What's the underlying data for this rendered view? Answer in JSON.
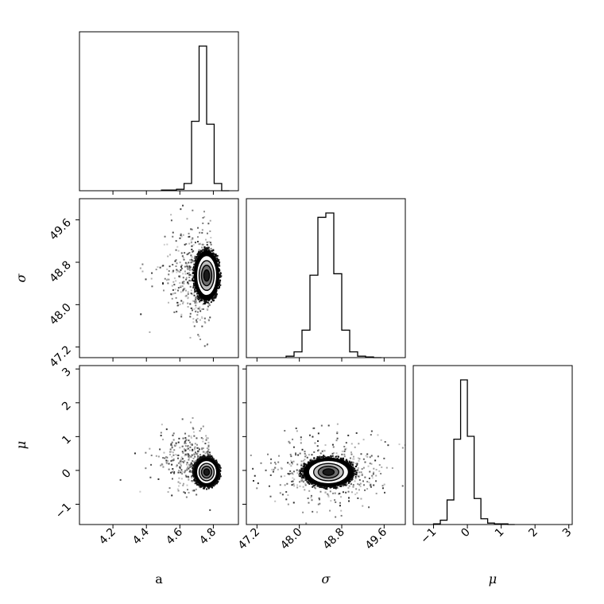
{
  "chart_data": {
    "type": "corner",
    "parameters": [
      {
        "key": "a",
        "label": "a",
        "range": [
          4.0,
          4.95
        ],
        "ticks": [
          {
            "v": 4.2,
            "t": "4.2"
          },
          {
            "v": 4.4,
            "t": "4.4"
          },
          {
            "v": 4.6,
            "t": "4.6"
          },
          {
            "v": 4.8,
            "t": "4.8"
          }
        ]
      },
      {
        "key": "sigma",
        "label": "σ",
        "range": [
          47.0,
          50.0
        ],
        "ticks": [
          {
            "v": 47.2,
            "t": "47.2"
          },
          {
            "v": 48.0,
            "t": "48.0"
          },
          {
            "v": 48.8,
            "t": "48.8"
          },
          {
            "v": 49.6,
            "t": "49.6"
          }
        ]
      },
      {
        "key": "mu",
        "label": "μ",
        "range": [
          -1.6,
          3.1
        ],
        "ticks": [
          {
            "v": -1,
            "t": "−1"
          },
          {
            "v": 0,
            "t": "0"
          },
          {
            "v": 1,
            "t": "1"
          },
          {
            "v": 2,
            "t": "2"
          },
          {
            "v": 3,
            "t": "3"
          }
        ]
      }
    ],
    "histograms": {
      "a": {
        "bins": [
          4.49,
          4.535,
          4.58,
          4.625,
          4.67,
          4.715,
          4.76,
          4.805,
          4.85,
          4.895
        ],
        "counts": [
          0.005,
          0.005,
          0.01,
          0.05,
          0.48,
          1.0,
          0.46,
          0.05,
          0.0
        ]
      },
      "sigma": {
        "bins": [
          47.75,
          47.9,
          48.05,
          48.2,
          48.35,
          48.5,
          48.65,
          48.8,
          48.95,
          49.1,
          49.25,
          49.4,
          49.55
        ],
        "counts": [
          0.01,
          0.04,
          0.19,
          0.57,
          0.97,
          1.0,
          0.58,
          0.19,
          0.04,
          0.01,
          0.005,
          0.0
        ]
      },
      "mu": {
        "bins": [
          -1.0,
          -0.8,
          -0.6,
          -0.4,
          -0.2,
          0.0,
          0.2,
          0.4,
          0.6,
          0.8,
          1.0,
          1.2,
          1.4
        ],
        "counts": [
          0.005,
          0.03,
          0.17,
          0.59,
          1.0,
          0.61,
          0.18,
          0.04,
          0.01,
          0.005,
          0.005,
          0.0
        ]
      }
    },
    "joint_2d": [
      {
        "x": "a",
        "y": "sigma",
        "center": [
          4.76,
          48.55
        ],
        "spread": [
          0.035,
          0.22
        ],
        "tail_direction": "toward lower a",
        "contour_levels": [
          "0.5σ",
          "1σ",
          "1.5σ",
          "2σ"
        ]
      },
      {
        "x": "a",
        "y": "mu",
        "center": [
          4.76,
          -0.05
        ],
        "spread": [
          0.035,
          0.2
        ],
        "tail_direction": "toward lower a, higher μ",
        "contour_levels": [
          "0.5σ",
          "1σ",
          "1.5σ",
          "2σ"
        ]
      },
      {
        "x": "sigma",
        "y": "mu",
        "center": [
          48.55,
          -0.05
        ],
        "spread": [
          0.22,
          0.2
        ],
        "tail_direction": "symmetric",
        "contour_levels": [
          "0.5σ",
          "1σ",
          "1.5σ",
          "2σ"
        ]
      }
    ],
    "grid": false,
    "legend": "none"
  }
}
